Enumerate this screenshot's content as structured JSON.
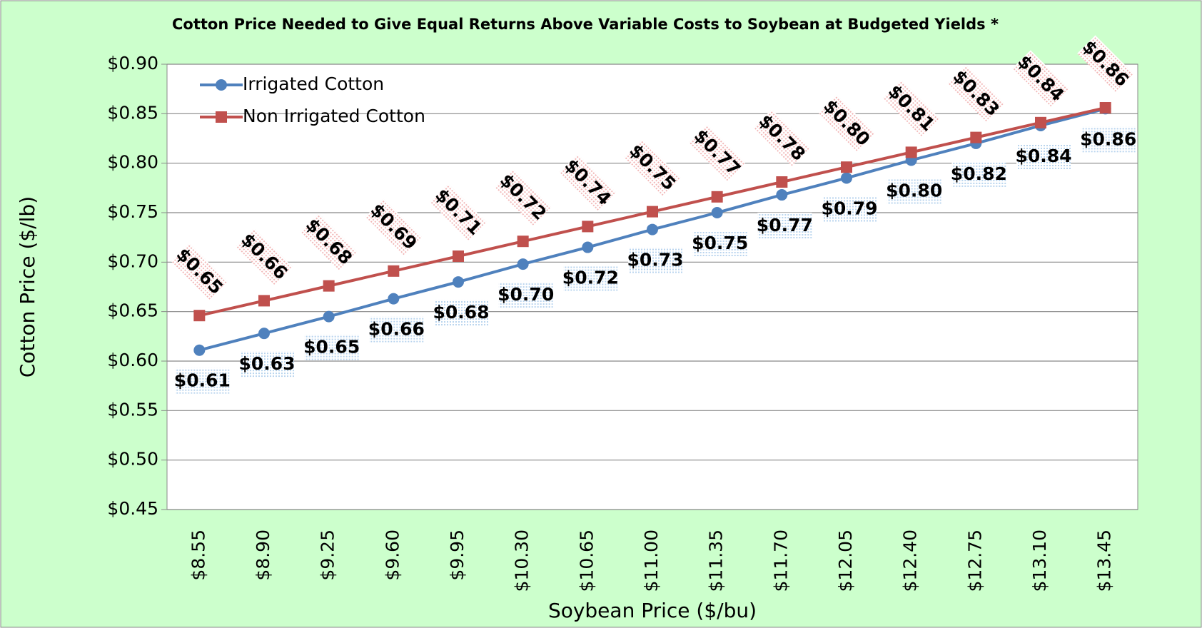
{
  "chart_data": {
    "type": "line",
    "title": "Cotton Price Needed to Give Equal Returns Above Variable Costs to Soybean at Budgeted Yields *",
    "x_label": "Soybean Price ($/bu)",
    "y_label": "Cotton Price ($/lb)",
    "categories": [
      "$8.55",
      "$8.90",
      "$9.25",
      "$9.60",
      "$9.95",
      "$10.30",
      "$10.65",
      "$11.00",
      "$11.35",
      "$11.70",
      "$12.05",
      "$12.40",
      "$12.75",
      "$13.10",
      "$13.45"
    ],
    "series": [
      {
        "name": "Irrigated Cotton",
        "color": "#4f81bd",
        "marker": "circle",
        "values": [
          0.611,
          0.628,
          0.645,
          0.663,
          0.68,
          0.698,
          0.715,
          0.733,
          0.75,
          0.768,
          0.785,
          0.803,
          0.82,
          0.838,
          0.855
        ],
        "value_labels": [
          "$0.61",
          "$0.63",
          "$0.65",
          "$0.66",
          "$0.68",
          "$0.70",
          "$0.72",
          "$0.73",
          "$0.75",
          "$0.77",
          "$0.79",
          "$0.80",
          "$0.82",
          "$0.84",
          "$0.86"
        ]
      },
      {
        "name": "Non Irrigated Cotton",
        "color": "#c0504d",
        "marker": "square",
        "values": [
          0.646,
          0.661,
          0.676,
          0.691,
          0.706,
          0.721,
          0.736,
          0.751,
          0.766,
          0.781,
          0.796,
          0.811,
          0.826,
          0.841,
          0.856
        ],
        "value_labels": [
          "$0.65",
          "$0.66",
          "$0.68",
          "$0.69",
          "$0.71",
          "$0.72",
          "$0.74",
          "$0.75",
          "$0.77",
          "$0.78",
          "$0.80",
          "$0.81",
          "$0.83",
          "$0.84",
          "$0.86"
        ]
      }
    ],
    "ylim": [
      0.45,
      0.9
    ],
    "yticks": [
      {
        "value": 0.45,
        "label": "$0.45"
      },
      {
        "value": 0.5,
        "label": "$0.50"
      },
      {
        "value": 0.55,
        "label": "$0.55"
      },
      {
        "value": 0.6,
        "label": "$0.60"
      },
      {
        "value": 0.65,
        "label": "$0.65"
      },
      {
        "value": 0.7,
        "label": "$0.70"
      },
      {
        "value": 0.75,
        "label": "$0.75"
      },
      {
        "value": 0.8,
        "label": "$0.80"
      },
      {
        "value": 0.85,
        "label": "$0.85"
      },
      {
        "value": 0.9,
        "label": "$0.90"
      }
    ],
    "grid": true,
    "legend": "top-left"
  }
}
